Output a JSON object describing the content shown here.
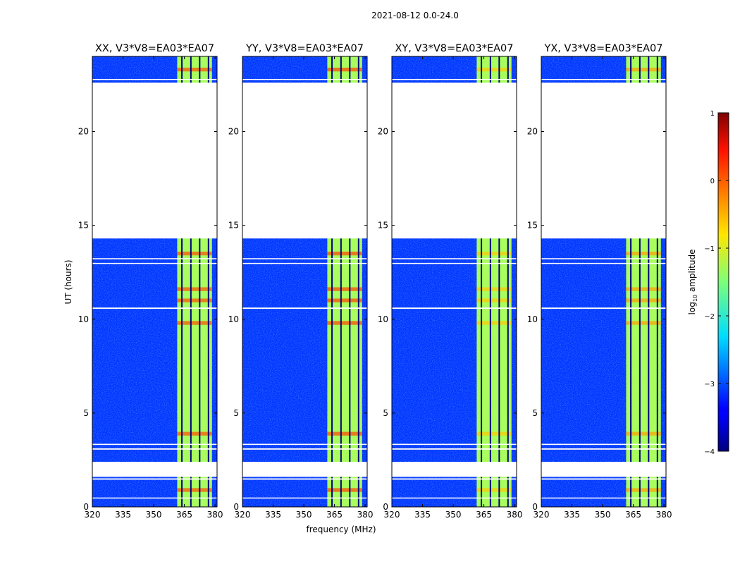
{
  "chart_data": {
    "type": "heatmap",
    "suptitle": "2021-08-12 0.0-24.0",
    "xlabel": "frequency (MHz)",
    "ylabel": "UT (hours)",
    "xlim": [
      320,
      381
    ],
    "ylim": [
      0,
      24
    ],
    "xticks": [
      "320",
      "335",
      "350",
      "365",
      "380"
    ],
    "xtick_values": [
      320,
      335,
      350,
      365,
      380
    ],
    "yticks": [
      "0",
      "5",
      "10",
      "15",
      "20"
    ],
    "ytick_values": [
      0,
      5,
      10,
      15,
      20
    ],
    "colorbar": {
      "label": "log",
      "label_sub": "10",
      "label_rest": " amplitude",
      "range": [
        -4,
        1
      ],
      "ticks": [
        "1",
        "0",
        "−1",
        "−2",
        "−3",
        "−4"
      ],
      "tick_values": [
        1,
        0,
        -1,
        -2,
        -3,
        -4
      ],
      "colormap": "jet"
    },
    "panels": [
      {
        "title": "XX, V3*V8=EA03*EA07",
        "hot_band_level": 0.0
      },
      {
        "title": "YY, V3*V8=EA03*EA07",
        "hot_band_level": 0.05
      },
      {
        "title": "XY, V3*V8=EA03*EA07",
        "hot_band_level": -0.6
      },
      {
        "title": "YX, V3*V8=EA03*EA07",
        "hot_band_level": -0.4
      }
    ],
    "no_data_ut_ranges": [
      [
        1.6,
        2.4
      ],
      [
        14.3,
        22.6
      ]
    ],
    "flagged_ut_ranges": [
      [
        0.45,
        0.5
      ],
      [
        1.45,
        1.52
      ],
      [
        3.05,
        3.12
      ],
      [
        3.3,
        3.36
      ],
      [
        10.55,
        10.62
      ],
      [
        12.95,
        13.0
      ],
      [
        13.2,
        13.25
      ],
      [
        22.75,
        22.8
      ]
    ],
    "background_level": -3.1,
    "band_level": -1.3,
    "band_freq_range_mhz": [
      361.5,
      378.5
    ],
    "band_gap_freqs_mhz": [
      363.8,
      368.2,
      372.5,
      376.8
    ]
  }
}
